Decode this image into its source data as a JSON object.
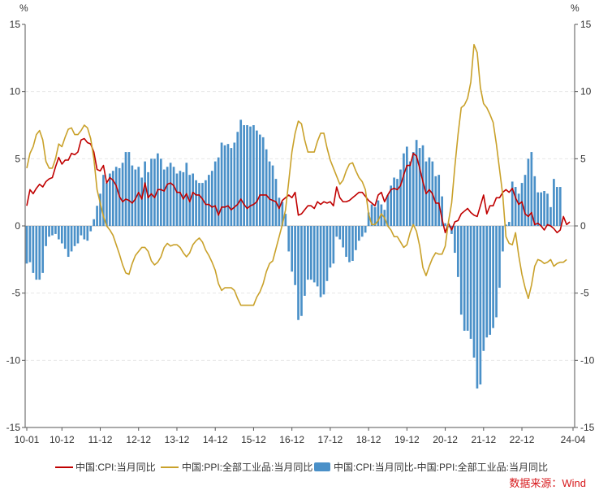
{
  "chart_data": {
    "type": "bar",
    "unit_left": "%",
    "unit_right": "%",
    "yticks": [
      15,
      10,
      5,
      0,
      -5,
      -10,
      -15
    ],
    "ylim": [
      -15,
      15
    ],
    "x_start": "2010-01",
    "x_end": "2024-04",
    "xticks": [
      {
        "label": "10-01",
        "date": "2010-01"
      },
      {
        "label": "10-12",
        "date": "2010-12"
      },
      {
        "label": "11-12",
        "date": "2011-12"
      },
      {
        "label": "12-12",
        "date": "2012-12"
      },
      {
        "label": "13-12",
        "date": "2013-12"
      },
      {
        "label": "14-12",
        "date": "2014-12"
      },
      {
        "label": "15-12",
        "date": "2015-12"
      },
      {
        "label": "16-12",
        "date": "2016-12"
      },
      {
        "label": "17-12",
        "date": "2017-12"
      },
      {
        "label": "18-12",
        "date": "2018-12"
      },
      {
        "label": "19-12",
        "date": "2019-12"
      },
      {
        "label": "20-12",
        "date": "2020-12"
      },
      {
        "label": "21-12",
        "date": "2021-12"
      },
      {
        "label": "22-12",
        "date": "2022-12"
      },
      {
        "label": "24-04",
        "date": "2024-04"
      }
    ],
    "series": [
      {
        "name": "中国:CPI:当月同比",
        "kind": "line",
        "color": "#c00000",
        "values": [
          1.5,
          2.7,
          2.4,
          2.8,
          3.1,
          2.9,
          3.3,
          3.5,
          3.6,
          4.4,
          5.1,
          4.6,
          4.9,
          4.9,
          5.4,
          5.3,
          5.5,
          6.4,
          6.5,
          6.2,
          6.1,
          5.5,
          4.2,
          4.1,
          4.5,
          3.2,
          3.6,
          3.4,
          3.0,
          2.2,
          1.8,
          2.0,
          1.9,
          1.7,
          2.0,
          2.5,
          2.0,
          3.2,
          2.1,
          2.4,
          2.1,
          2.7,
          2.7,
          2.6,
          3.1,
          3.2,
          3.0,
          2.5,
          2.5,
          2.0,
          2.4,
          1.8,
          2.5,
          2.3,
          2.3,
          2.0,
          1.6,
          1.6,
          1.4,
          1.5,
          0.8,
          1.4,
          1.4,
          1.5,
          1.2,
          1.4,
          1.6,
          2.0,
          1.6,
          1.3,
          1.5,
          1.6,
          1.8,
          2.3,
          2.3,
          2.3,
          2.0,
          1.9,
          1.8,
          1.3,
          1.9,
          2.1,
          2.3,
          2.1,
          2.5,
          0.8,
          0.9,
          1.2,
          1.5,
          1.5,
          1.3,
          1.8,
          1.6,
          1.8,
          1.7,
          1.8,
          1.5,
          2.9,
          2.1,
          1.8,
          1.8,
          1.9,
          2.1,
          2.3,
          2.5,
          2.5,
          2.2,
          1.9,
          1.7,
          1.5,
          2.3,
          2.5,
          1.8,
          2.3,
          2.7,
          2.8,
          2.7,
          3.0,
          3.8,
          4.5,
          4.5,
          5.4,
          5.2,
          4.3,
          3.3,
          2.4,
          2.7,
          2.4,
          1.7,
          1.7,
          0.5,
          -0.5,
          0.2,
          -0.3,
          0.3,
          0.4,
          0.9,
          1.1,
          1.3,
          1.0,
          0.8,
          0.7,
          1.5,
          2.3,
          0.9,
          1.5,
          1.5,
          2.1,
          2.1,
          2.5,
          2.7,
          2.5,
          2.8,
          2.1,
          1.6,
          1.8,
          0.9,
          0.7,
          1.0,
          0.1,
          0.2,
          0.0,
          -0.3,
          0.1,
          0.0,
          -0.2,
          -0.5,
          -0.3,
          0.7,
          0.1,
          0.3
        ],
        "legend_label": "中国:CPI:当月同比"
      },
      {
        "name": "中国:PPI:全部工业品:当月同比",
        "kind": "line",
        "color": "#c9a12a",
        "values": [
          4.3,
          5.4,
          5.9,
          6.8,
          7.1,
          6.4,
          4.8,
          4.3,
          4.3,
          5.0,
          6.1,
          5.9,
          6.6,
          7.2,
          7.3,
          6.8,
          6.8,
          7.1,
          7.5,
          7.3,
          6.5,
          5.0,
          2.7,
          1.7,
          0.7,
          0.0,
          -0.3,
          -0.7,
          -1.4,
          -2.1,
          -2.9,
          -3.5,
          -3.6,
          -2.8,
          -2.2,
          -1.9,
          -1.6,
          -1.6,
          -1.9,
          -2.6,
          -2.9,
          -2.7,
          -2.3,
          -1.6,
          -1.3,
          -1.5,
          -1.4,
          -1.4,
          -1.6,
          -2.0,
          -2.3,
          -2.0,
          -1.4,
          -1.1,
          -0.9,
          -1.2,
          -1.8,
          -2.2,
          -2.7,
          -3.3,
          -4.3,
          -4.8,
          -4.6,
          -4.6,
          -4.6,
          -4.8,
          -5.4,
          -5.9,
          -5.9,
          -5.9,
          -5.9,
          -5.9,
          -5.3,
          -4.9,
          -4.3,
          -3.4,
          -2.8,
          -2.6,
          -1.7,
          -0.8,
          0.1,
          1.2,
          3.3,
          5.5,
          6.9,
          7.8,
          7.6,
          6.4,
          5.5,
          5.5,
          5.5,
          6.3,
          6.9,
          6.9,
          5.8,
          4.9,
          4.3,
          3.7,
          3.1,
          3.4,
          4.1,
          4.6,
          4.7,
          4.1,
          3.6,
          3.3,
          2.7,
          0.9,
          0.1,
          0.1,
          0.4,
          0.9,
          0.6,
          0.0,
          -0.3,
          -0.8,
          -0.8,
          -1.2,
          -1.6,
          -1.4,
          -0.5,
          0.1,
          -0.4,
          -1.5,
          -3.1,
          -3.7,
          -3.0,
          -2.4,
          -2.0,
          -2.1,
          -2.1,
          -1.5,
          0.3,
          1.7,
          4.4,
          6.8,
          8.8,
          9.0,
          9.5,
          10.7,
          13.5,
          12.9,
          10.3,
          9.1,
          8.8,
          8.3,
          7.7,
          6.1,
          4.2,
          2.3,
          -0.8,
          -1.3,
          -1.4,
          -0.5,
          -2.2,
          -3.6,
          -4.6,
          -5.4,
          -4.4,
          -3.0,
          -2.5,
          -2.6,
          -2.8,
          -2.7,
          -2.5,
          -3.0,
          -2.8,
          -2.7,
          -2.7,
          -2.5
        ],
        "legend_label": "中国:PPI:全部工业品:当月同比"
      },
      {
        "name": "中国:CPI:当月同比-中国:PPI:全部工业品:当月同比",
        "kind": "bar",
        "color": "#4a90c8",
        "values": [
          -2.8,
          -2.7,
          -3.5,
          -4.0,
          -4.0,
          -3.5,
          -1.5,
          -0.8,
          -0.7,
          -0.6,
          -1.0,
          -1.3,
          -1.7,
          -2.3,
          -1.9,
          -1.5,
          -1.3,
          -0.7,
          -1.0,
          -1.1,
          -0.4,
          0.5,
          1.5,
          2.4,
          3.8,
          3.2,
          3.9,
          4.1,
          4.4,
          4.3,
          4.7,
          5.5,
          5.5,
          4.5,
          4.2,
          4.4,
          3.6,
          4.8,
          4.0,
          5.0,
          5.0,
          5.4,
          5.0,
          4.2,
          4.4,
          4.7,
          4.4,
          3.9,
          4.1,
          4.0,
          4.7,
          3.8,
          3.9,
          3.4,
          3.2,
          3.2,
          3.4,
          3.8,
          4.1,
          4.8,
          5.1,
          6.2,
          6.0,
          6.1,
          5.8,
          6.2,
          7.0,
          7.9,
          7.5,
          7.5,
          7.4,
          7.5,
          7.1,
          6.8,
          6.6,
          5.7,
          4.8,
          4.5,
          3.5,
          2.1,
          1.8,
          0.9,
          -1.9,
          -3.4,
          -4.4,
          -7.0,
          -6.7,
          -5.2,
          -4.0,
          -4.0,
          -4.2,
          -4.5,
          -5.3,
          -5.1,
          -4.1,
          -3.1,
          -2.8,
          -0.8,
          -1.0,
          -1.6,
          -2.3,
          -2.7,
          -2.6,
          -1.8,
          -1.1,
          -0.8,
          -0.5,
          1.0,
          1.6,
          1.4,
          1.9,
          1.6,
          1.2,
          2.3,
          3.0,
          3.6,
          3.5,
          4.2,
          5.4,
          5.9,
          4.8,
          5.5,
          6.4,
          5.8,
          6.0,
          4.8,
          5.1,
          4.8,
          3.7,
          3.8,
          2.2,
          0.2,
          -0.1,
          -0.6,
          -2.0,
          -3.8,
          -6.6,
          -7.8,
          -7.8,
          -8.4,
          -9.8,
          -12.1,
          -11.8,
          -9.3,
          -8.3,
          -8.1,
          -7.6,
          -6.8,
          -4.6,
          -1.9,
          0.1,
          0.3,
          3.3,
          2.9,
          2.4,
          3.2,
          3.8,
          5.0,
          5.5,
          3.7,
          2.5,
          2.5,
          2.6,
          2.4,
          1.4,
          3.5,
          2.9,
          2.9
        ],
        "legend_label": "中国:CPI:当月同比-中国:PPI:全部工业品:当月同比"
      }
    ]
  },
  "source": "数据来源：Wind",
  "colors": {
    "axis": "#555555",
    "grid": "#e6e6e6",
    "cpi": "#c00000",
    "ppi": "#c9a12a",
    "bar": "#4a90c8"
  }
}
